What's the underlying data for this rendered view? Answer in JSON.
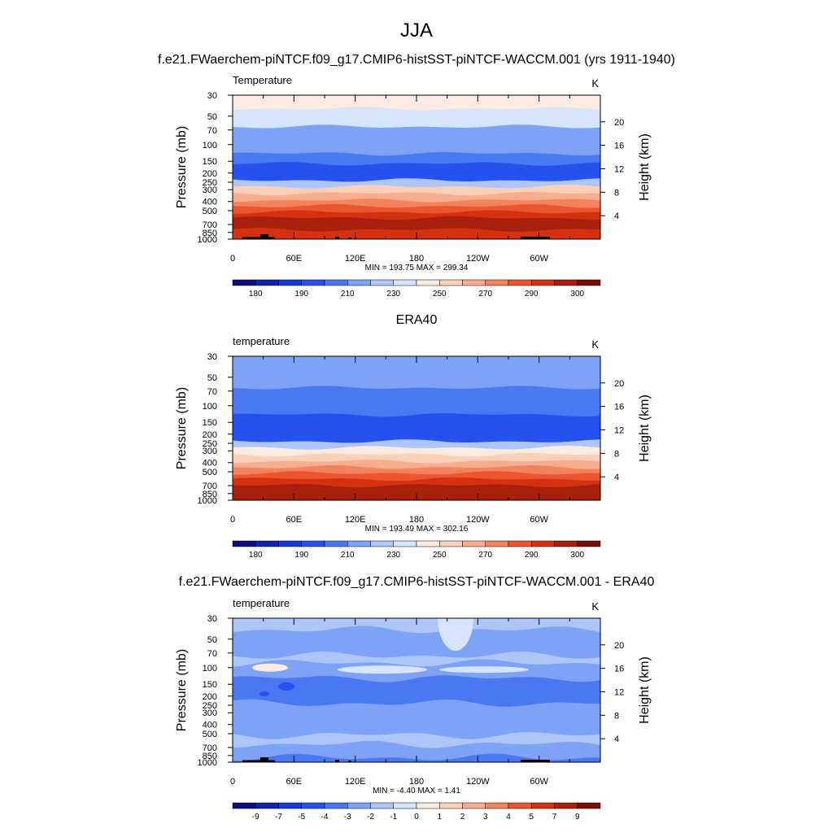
{
  "page": {
    "title": "JJA",
    "subtitle": "f.e21.FWaerchem-piNTCF.f09_g17.CMIP6-histSST-piNTCF-WACCM.001 (yrs 1911-1940)"
  },
  "chart_data": [
    {
      "type": "heatmap",
      "title": "",
      "left_label": "Temperature",
      "units": "K",
      "ylabel": "Pressure (mb)",
      "ylabel_right": "Height (km)",
      "x_ticks": [
        "0",
        "60E",
        "120E",
        "180",
        "120W",
        "60W"
      ],
      "y_ticks": [
        "30",
        "50",
        "70",
        "100",
        "150",
        "200",
        "250",
        "300",
        "400",
        "500",
        "700",
        "850",
        "1000"
      ],
      "y_ticks_right": [
        "20",
        "16",
        "12",
        "8",
        "4"
      ],
      "stats": "MIN = 193.75  MAX = 299.34",
      "colorbar_levels": [
        "180",
        "190",
        "210",
        "230",
        "250",
        "270",
        "290",
        "300"
      ],
      "colors": [
        "#0b0d80",
        "#0e23a8",
        "#1538d6",
        "#2552ee",
        "#4a78f2",
        "#7ea2f5",
        "#aec5f8",
        "#d6e5fb",
        "#fcebe0",
        "#fbd0b8",
        "#f8ae8e",
        "#f3835d",
        "#ec5530",
        "#d63012",
        "#a8200b",
        "#7a0d05"
      ],
      "band_levels": [
        8,
        7,
        5,
        5,
        4,
        3,
        3,
        6,
        9,
        10,
        11,
        12,
        13,
        14,
        14,
        13
      ],
      "band_edges_mb": [
        30,
        42,
        65,
        78,
        125,
        160,
        200,
        240,
        280,
        330,
        390,
        450,
        520,
        600,
        700,
        800,
        1000
      ],
      "topography": true
    },
    {
      "type": "heatmap",
      "title": "ERA40",
      "left_label": "temperature",
      "units": "K",
      "ylabel": "Pressure (mb)",
      "ylabel_right": "Height (km)",
      "x_ticks": [
        "0",
        "60E",
        "120E",
        "180",
        "120W",
        "60W"
      ],
      "y_ticks": [
        "30",
        "50",
        "70",
        "100",
        "150",
        "200",
        "250",
        "300",
        "400",
        "500",
        "700",
        "850",
        "1000"
      ],
      "y_ticks_right": [
        "20",
        "16",
        "12",
        "8",
        "4"
      ],
      "stats": "MIN = 193.49  MAX = 302.16",
      "colorbar_levels": [
        "180",
        "190",
        "210",
        "230",
        "250",
        "270",
        "290",
        "300"
      ],
      "colors": [
        "#0b0d80",
        "#0e23a8",
        "#1538d6",
        "#2552ee",
        "#4a78f2",
        "#7ea2f5",
        "#aec5f8",
        "#d6e5fb",
        "#fcebe0",
        "#fbd0b8",
        "#f8ae8e",
        "#f3835d",
        "#ec5530",
        "#d63012",
        "#a8200b",
        "#7a0d05"
      ],
      "band_levels": [
        5,
        5,
        4,
        4,
        3,
        3,
        3,
        6,
        8,
        9,
        10,
        11,
        12,
        13,
        14,
        14
      ],
      "band_edges_mb": [
        30,
        42,
        65,
        78,
        125,
        160,
        200,
        240,
        280,
        330,
        390,
        450,
        520,
        600,
        700,
        800,
        1000
      ],
      "topography": false
    },
    {
      "type": "heatmap",
      "title": "f.e21.FWaerchem-piNTCF.f09_g17.CMIP6-histSST-piNTCF-WACCM.001 - ERA40",
      "left_label": "temperature",
      "units": "K",
      "ylabel": "Pressure (mb)",
      "ylabel_right": "Height (km)",
      "x_ticks": [
        "0",
        "60E",
        "120E",
        "180",
        "120W",
        "60W"
      ],
      "y_ticks": [
        "30",
        "50",
        "70",
        "100",
        "150",
        "200",
        "250",
        "300",
        "400",
        "500",
        "700",
        "850",
        "1000"
      ],
      "y_ticks_right": [
        "20",
        "16",
        "12",
        "8",
        "4"
      ],
      "stats": "MIN =  -4.40  MAX =   1.41",
      "colorbar_levels": [
        "-9",
        "-7",
        "-5",
        "-4",
        "-3",
        "-2",
        "-1",
        "0",
        "1",
        "2",
        "3",
        "4",
        "5",
        "7",
        "9"
      ],
      "colors": [
        "#0b0d80",
        "#0e23a8",
        "#1538d6",
        "#2552ee",
        "#4a78f2",
        "#7ea2f5",
        "#aec5f8",
        "#d6e5fb",
        "#fcebe0",
        "#fbd0b8",
        "#f8ae8e",
        "#f3835d",
        "#ec5530",
        "#d63012",
        "#a8200b",
        "#7a0d05"
      ],
      "band_levels": [
        6,
        5,
        6,
        5,
        4,
        4,
        5,
        5,
        5,
        6,
        5,
        5,
        4
      ],
      "band_edges_mb": [
        30,
        40,
        75,
        90,
        130,
        160,
        240,
        300,
        400,
        520,
        650,
        780,
        900,
        1000
      ],
      "topography": true
    }
  ]
}
